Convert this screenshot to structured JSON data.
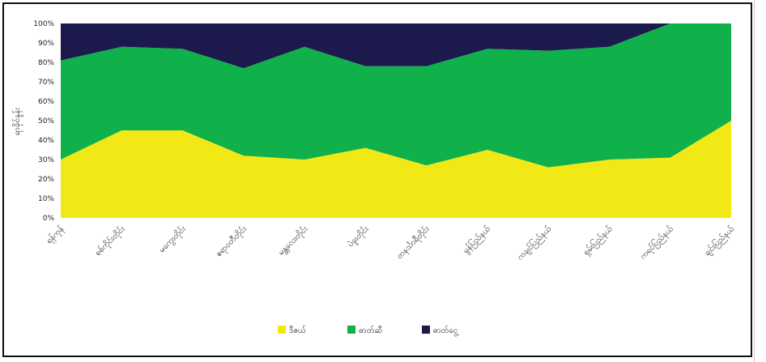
{
  "chart_data": {
    "type": "area",
    "stacked": true,
    "percent": true,
    "categories": [
      "ရန်ကုန်",
      "စစ်ကိုင်းတိုင်း",
      "မကွေးတိုင်း",
      "ဧရာဝတီတိုင်း",
      "မန္တလေးတိုင်း",
      "ပဲခူးတိုင်း",
      "တနင်္သာရီတိုင်း",
      "မွန်ပြည်နယ်",
      "ကချင်ပြည်နယ်",
      "ရှမ်းပြည်နယ်",
      "ကရင်ပြည်နယ်",
      "ချင်းပြည်နယ်"
    ],
    "series": [
      {
        "name": "ဒီဇယ်",
        "color": "#f2e816",
        "values": [
          30,
          45,
          45,
          32,
          30,
          36,
          27,
          35,
          26,
          30,
          31,
          50
        ]
      },
      {
        "name": "ဓာတ်ဆီ",
        "color": "#10b04a",
        "values": [
          51,
          43,
          42,
          45,
          58,
          42,
          51,
          52,
          60,
          58,
          69,
          50
        ]
      },
      {
        "name": "ဓာတ်ငွေ့",
        "color": "#1c1a4d",
        "values": [
          19,
          12,
          13,
          23,
          12,
          22,
          22,
          13,
          14,
          12,
          0,
          0
        ]
      }
    ],
    "ylabel": "ရာခိုင်နှုန်း",
    "ylim": [
      0,
      100
    ],
    "yticks": [
      "0%",
      "10%",
      "20%",
      "30%",
      "40%",
      "50%",
      "60%",
      "70%",
      "80%",
      "90%",
      "100%"
    ],
    "legend_position": "bottom",
    "grid": false
  },
  "colors": {
    "frame": "#111111",
    "background": "#ffffff"
  }
}
